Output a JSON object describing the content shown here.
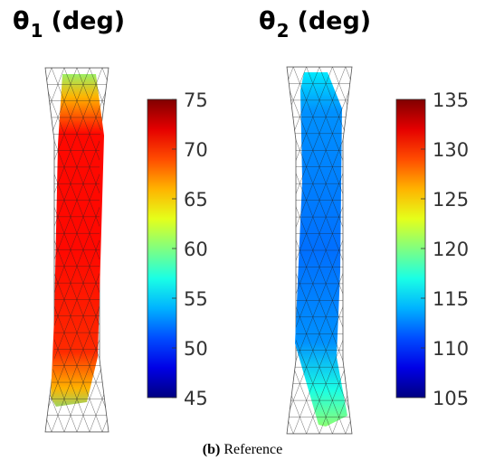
{
  "panels": [
    {
      "symbol": "θ",
      "subscript": "1",
      "unit": "(deg)"
    },
    {
      "symbol": "θ",
      "subscript": "2",
      "unit": "(deg)"
    }
  ],
  "caption": {
    "label": "(b)",
    "text": "Reference"
  },
  "chart_data": [
    {
      "type": "heatmap",
      "title": "θ1 (deg)",
      "colorbar": {
        "ticks": [
          45,
          50,
          55,
          60,
          65,
          70,
          75
        ],
        "range": [
          45,
          75
        ],
        "colormap": "jet"
      },
      "field": [
        {
          "y_frac": 0.0,
          "value": 60
        },
        {
          "y_frac": 0.08,
          "value": 66
        },
        {
          "y_frac": 0.18,
          "value": 71
        },
        {
          "y_frac": 0.5,
          "value": 71
        },
        {
          "y_frac": 0.78,
          "value": 70
        },
        {
          "y_frac": 0.88,
          "value": 66
        },
        {
          "y_frac": 1.0,
          "value": 57
        }
      ]
    },
    {
      "type": "heatmap",
      "title": "θ2 (deg)",
      "colorbar": {
        "ticks": [
          105,
          110,
          115,
          120,
          125,
          130,
          135
        ],
        "range": [
          105,
          135
        ],
        "colormap": "jet"
      },
      "field": [
        {
          "y_frac": 0.0,
          "value": 116
        },
        {
          "y_frac": 0.12,
          "value": 113
        },
        {
          "y_frac": 0.5,
          "value": 112
        },
        {
          "y_frac": 0.75,
          "value": 113
        },
        {
          "y_frac": 0.88,
          "value": 117
        },
        {
          "y_frac": 1.0,
          "value": 121
        }
      ]
    }
  ]
}
